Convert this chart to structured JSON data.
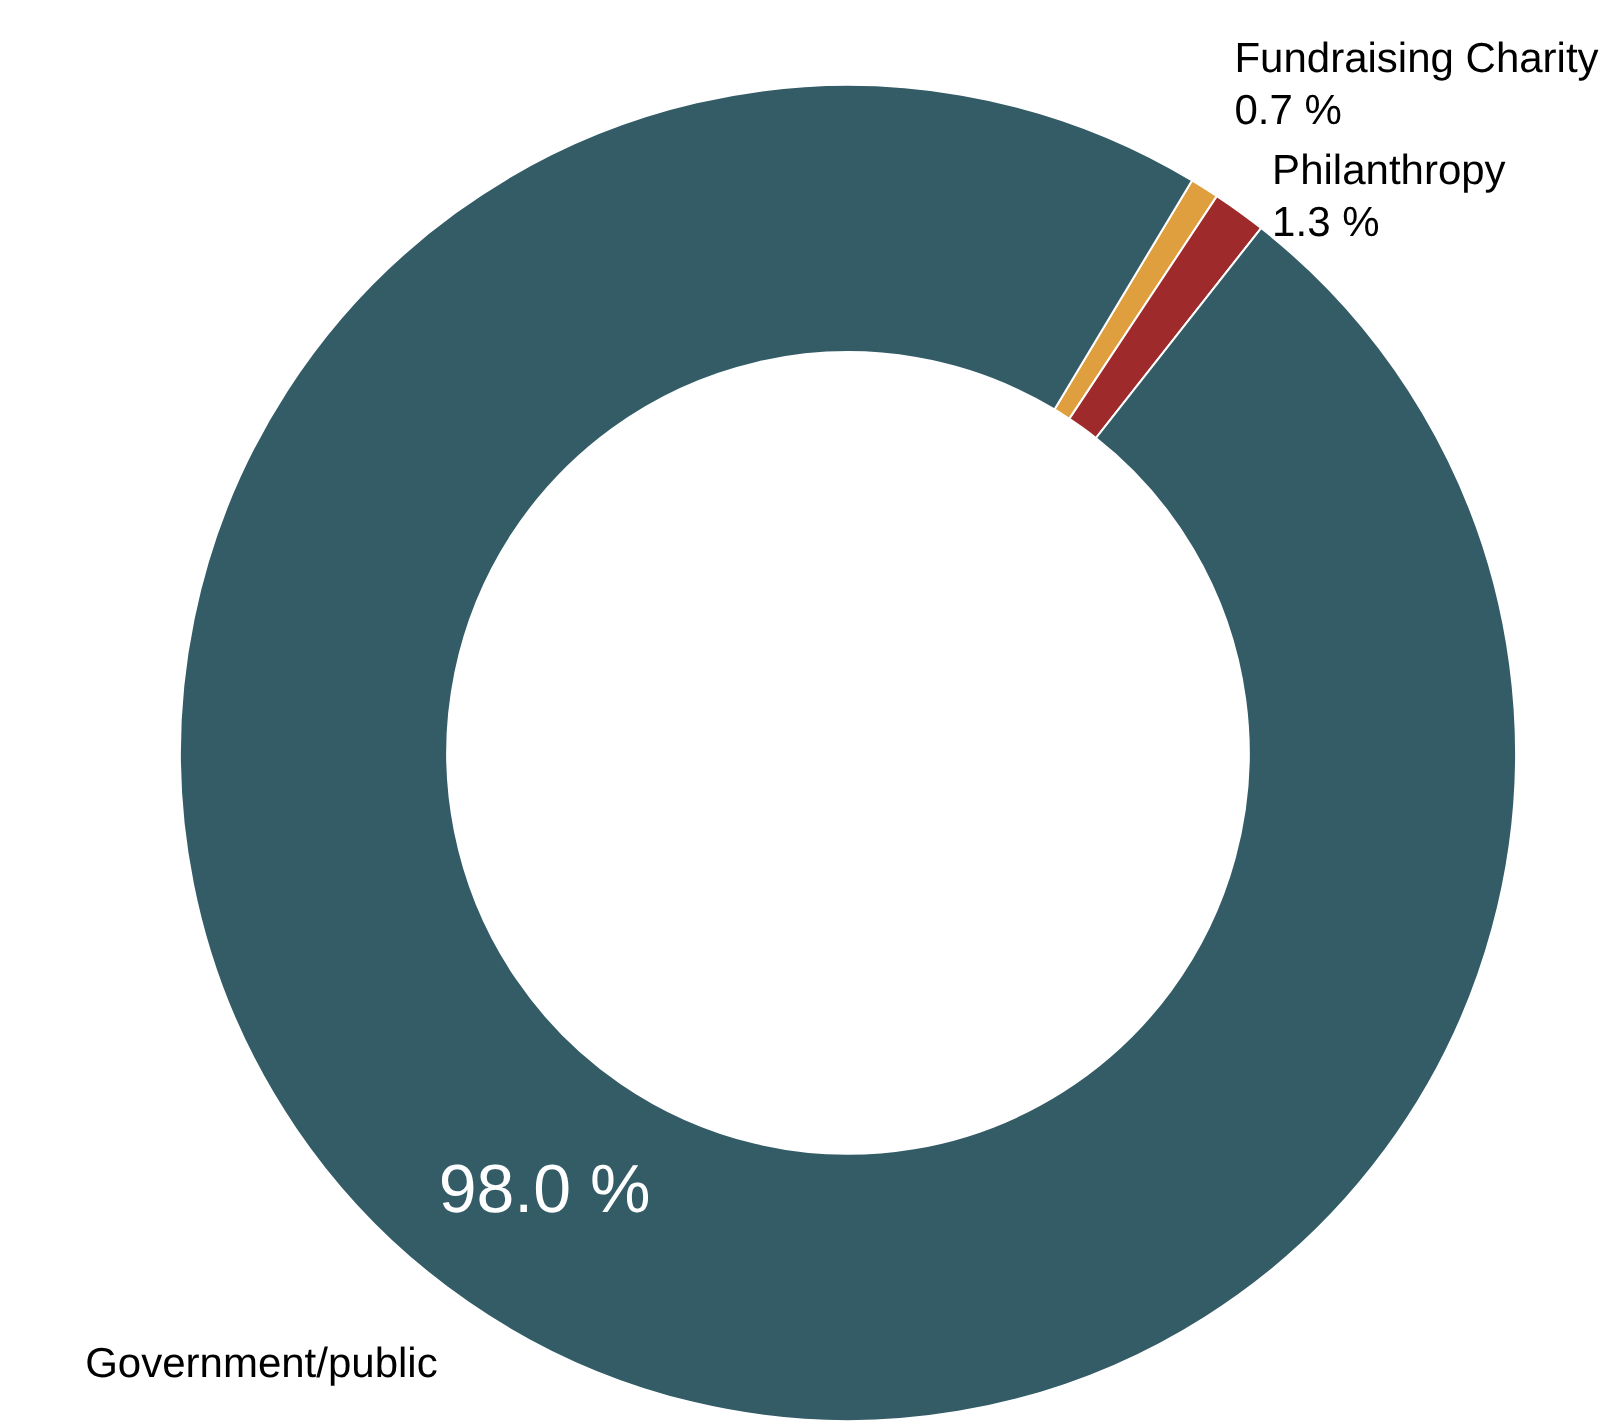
{
  "chart_data": {
    "type": "donut",
    "categories": [
      "Fundraising Charity",
      "Philanthropy",
      "Government/public"
    ],
    "values": [
      0.7,
      1.3,
      98.0
    ],
    "colors": [
      "#e09f3e",
      "#9e2a2b",
      "#335c67"
    ],
    "value_labels": [
      "0.7 %",
      "1.3 %",
      "98.0 %"
    ],
    "legend": false
  }
}
